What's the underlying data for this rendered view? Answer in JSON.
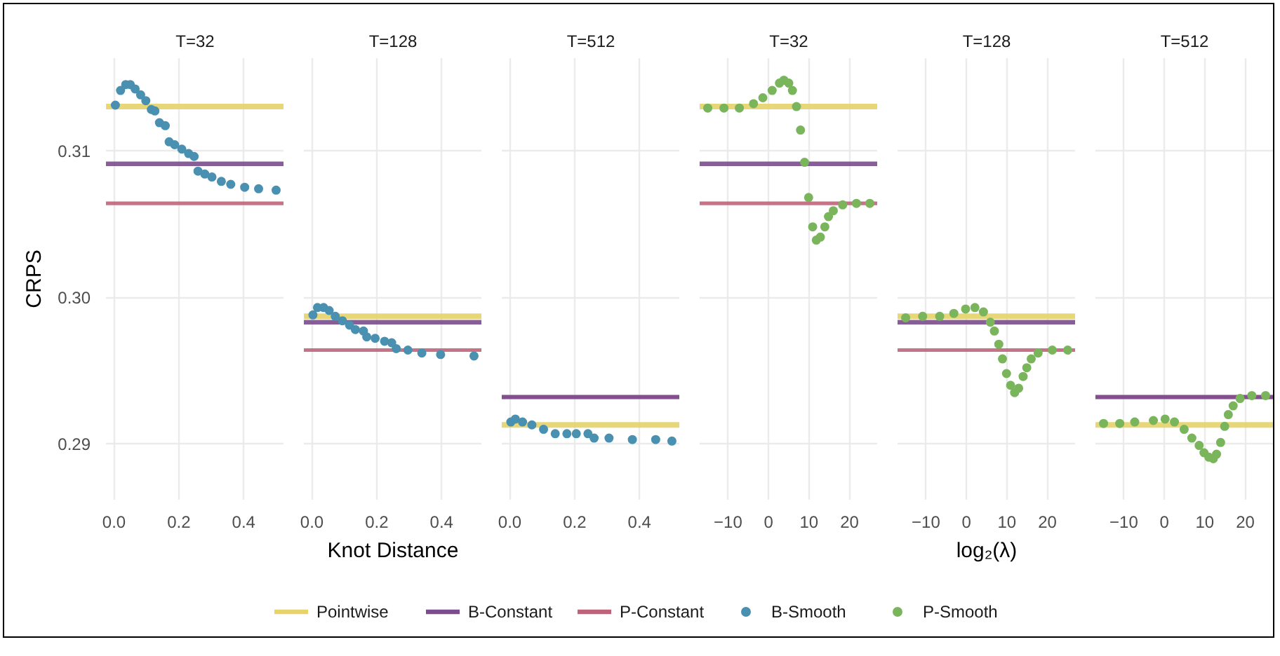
{
  "chart_data": [
    {
      "type": "scatter",
      "title": "T=32",
      "ylabel": "CRPS",
      "xlim": [
        -0.025,
        0.525
      ],
      "xticks": [
        {
          "value": 0,
          "label": "0.0"
        },
        {
          "value": 0.2,
          "label": "0.2"
        },
        {
          "value": 0.4,
          "label": "0.4"
        }
      ],
      "ylim": [
        0.2862,
        0.3163
      ],
      "yticks": [
        {
          "value": 0.29,
          "label": "0.29"
        },
        {
          "value": 0.3,
          "label": "0.30"
        },
        {
          "value": 0.31,
          "label": "0.31"
        }
      ],
      "grid": true,
      "legend": "bottom",
      "series": [
        {
          "name": "Pointwise",
          "type": "line",
          "color": "#e6d36a",
          "x": [
            -0.025,
            0.525
          ],
          "values": [
            0.313,
            0.313
          ]
        },
        {
          "name": "B-Constant",
          "type": "line",
          "color": "#7b4d8e",
          "x": [
            -0.025,
            0.525
          ],
          "values": [
            0.3091,
            0.3091
          ]
        },
        {
          "name": "P-Constant",
          "type": "line",
          "color": "#c0637a",
          "x": [
            -0.025,
            0.525
          ],
          "values": [
            0.3064,
            0.3064
          ]
        },
        {
          "name": "B-Smooth",
          "marker": "circle",
          "color": "#4a90b0",
          "x": [
            0.004,
            0.02,
            0.036,
            0.05,
            0.065,
            0.082,
            0.098,
            0.115,
            0.126,
            0.14,
            0.158,
            0.17,
            0.187,
            0.209,
            0.23,
            0.247,
            0.259,
            0.28,
            0.302,
            0.331,
            0.36,
            0.403,
            0.446,
            0.5
          ],
          "values": [
            0.3131,
            0.3141,
            0.3145,
            0.3145,
            0.3142,
            0.3138,
            0.3134,
            0.3128,
            0.3127,
            0.3119,
            0.3117,
            0.3106,
            0.3104,
            0.3101,
            0.3098,
            0.3096,
            0.3086,
            0.3084,
            0.3082,
            0.3079,
            0.3077,
            0.3075,
            0.3074,
            0.3073
          ]
        }
      ]
    },
    {
      "type": "scatter",
      "title": "T=128",
      "xlabel": "Knot Distance",
      "xlim": [
        -0.025,
        0.525
      ],
      "xticks": [
        {
          "value": 0,
          "label": "0.0"
        },
        {
          "value": 0.2,
          "label": "0.2"
        },
        {
          "value": 0.4,
          "label": "0.4"
        }
      ],
      "ylim": [
        0.2862,
        0.3163
      ],
      "yticks": [
        0.29,
        0.3,
        0.31
      ],
      "tick_labels": "x",
      "grid": true,
      "series": [
        {
          "type": "line",
          "color": "#e6d36a",
          "x": [
            -0.025,
            0.525
          ],
          "values": [
            0.2987,
            0.2987
          ]
        },
        {
          "type": "line",
          "color": "#7b4d8e",
          "x": [
            -0.025,
            0.525
          ],
          "values": [
            0.2983,
            0.2983
          ]
        },
        {
          "type": "line",
          "color": "#c0637a",
          "x": [
            -0.025,
            0.525
          ],
          "values": [
            0.2964,
            0.2964
          ]
        },
        {
          "marker": "circle",
          "color": "#4a90b0",
          "x": [
            0.003,
            0.017,
            0.036,
            0.053,
            0.072,
            0.094,
            0.116,
            0.134,
            0.159,
            0.169,
            0.195,
            0.224,
            0.246,
            0.26,
            0.296,
            0.339,
            0.397,
            0.5
          ],
          "values": [
            0.2988,
            0.2993,
            0.2993,
            0.2991,
            0.2987,
            0.2984,
            0.2981,
            0.2978,
            0.2977,
            0.2973,
            0.2972,
            0.297,
            0.2969,
            0.2965,
            0.2964,
            0.2962,
            0.2961,
            0.296
          ]
        }
      ]
    },
    {
      "type": "scatter",
      "title": "T=512",
      "xlim": [
        -0.025,
        0.525
      ],
      "xticks": [
        {
          "value": 0,
          "label": "0.0"
        },
        {
          "value": 0.2,
          "label": "0.2"
        },
        {
          "value": 0.4,
          "label": "0.4"
        }
      ],
      "ylim": [
        0.2862,
        0.3163
      ],
      "yticks": [
        0.29,
        0.3,
        0.31
      ],
      "tick_labels": "x",
      "grid": true,
      "series": [
        {
          "type": "line",
          "color": "#e6d36a",
          "x": [
            -0.025,
            0.525
          ],
          "values": [
            0.2913,
            0.2913
          ]
        },
        {
          "type": "line",
          "color": "#c0637a",
          "x": [
            -0.025,
            0.525
          ],
          "values": [
            0.2932,
            0.2932
          ]
        },
        {
          "type": "line",
          "color": "#7b4d8e",
          "x": [
            -0.025,
            0.525
          ],
          "values": [
            0.2932,
            0.2932
          ]
        },
        {
          "marker": "circle",
          "color": "#4a90b0",
          "x": [
            0.003,
            0.017,
            0.039,
            0.068,
            0.104,
            0.14,
            0.176,
            0.205,
            0.241,
            0.26,
            0.306,
            0.378,
            0.45,
            0.5
          ],
          "values": [
            0.2915,
            0.2917,
            0.2915,
            0.2913,
            0.291,
            0.2907,
            0.2907,
            0.2907,
            0.2907,
            0.2904,
            0.2904,
            0.2903,
            0.2903,
            0.2902
          ]
        }
      ]
    },
    {
      "type": "scatter",
      "title": "T=32",
      "xlim": [
        -17,
        27
      ],
      "xticks": [
        -10,
        0,
        10,
        20
      ],
      "ylim": [
        0.2862,
        0.3163
      ],
      "yticks": [
        0.29,
        0.3,
        0.31
      ],
      "tick_labels": "x",
      "grid": true,
      "legend": "bottom",
      "series": [
        {
          "type": "line",
          "color": "#e6d36a",
          "x": [
            -17,
            27
          ],
          "values": [
            0.313,
            0.313
          ]
        },
        {
          "type": "line",
          "color": "#7b4d8e",
          "x": [
            -17,
            27
          ],
          "values": [
            0.3091,
            0.3091
          ]
        },
        {
          "type": "line",
          "color": "#c0637a",
          "x": [
            -17,
            27
          ],
          "values": [
            0.3064,
            0.3064
          ]
        },
        {
          "name": "P-Smooth",
          "marker": "circle",
          "color": "#7ab55c",
          "x": [
            -15,
            -11,
            -7.2,
            -3.7,
            -1.4,
            0.9,
            2.7,
            3.8,
            5.0,
            5.9,
            6.9,
            7.9,
            8.9,
            9.9,
            10.9,
            11.8,
            12.8,
            13.9,
            14.8,
            16,
            18.3,
            21.7,
            25
          ],
          "values": [
            0.3129,
            0.3129,
            0.3129,
            0.3132,
            0.3136,
            0.3141,
            0.3146,
            0.3148,
            0.3146,
            0.3141,
            0.313,
            0.3114,
            0.3092,
            0.3068,
            0.3048,
            0.3039,
            0.3041,
            0.3048,
            0.3055,
            0.3059,
            0.3063,
            0.3064,
            0.3064
          ]
        }
      ]
    },
    {
      "type": "scatter",
      "title": "T=128",
      "xlabel": "log₂(λ)",
      "xlim": [
        -17,
        27
      ],
      "xticks": [
        -10,
        0,
        10,
        20
      ],
      "ylim": [
        0.2862,
        0.3163
      ],
      "yticks": [
        0.29,
        0.3,
        0.31
      ],
      "tick_labels": "x",
      "grid": true,
      "series": [
        {
          "type": "line",
          "color": "#e6d36a",
          "x": [
            -17,
            27
          ],
          "values": [
            0.2987,
            0.2987
          ]
        },
        {
          "type": "line",
          "color": "#7b4d8e",
          "x": [
            -17,
            27
          ],
          "values": [
            0.2983,
            0.2983
          ]
        },
        {
          "type": "line",
          "color": "#c0637a",
          "x": [
            -17,
            27
          ],
          "values": [
            0.2964,
            0.2964
          ]
        },
        {
          "marker": "circle",
          "color": "#7ab55c",
          "x": [
            -15,
            -10.8,
            -6.6,
            -3.1,
            -0.2,
            2.1,
            4.2,
            5.9,
            6.9,
            8,
            8.9,
            9.9,
            10.9,
            11.9,
            12.9,
            14,
            14.9,
            16,
            17.7,
            21.2,
            25
          ],
          "values": [
            0.2986,
            0.2987,
            0.2987,
            0.2989,
            0.2992,
            0.2993,
            0.299,
            0.2983,
            0.2977,
            0.2968,
            0.2958,
            0.2948,
            0.294,
            0.2935,
            0.2938,
            0.2946,
            0.2952,
            0.2958,
            0.2962,
            0.2964,
            0.2964
          ]
        }
      ]
    },
    {
      "type": "scatter",
      "title": "T=512",
      "xlim": [
        -17,
        27
      ],
      "xticks": [
        -10,
        0,
        10,
        20
      ],
      "ylim": [
        0.2862,
        0.3163
      ],
      "yticks": [
        0.29,
        0.3,
        0.31
      ],
      "tick_labels": "x",
      "grid": true,
      "series": [
        {
          "type": "line",
          "color": "#e6d36a",
          "x": [
            -17,
            27
          ],
          "values": [
            0.2913,
            0.2913
          ]
        },
        {
          "type": "line",
          "color": "#c0637a",
          "x": [
            -17,
            27
          ],
          "values": [
            0.2932,
            0.2932
          ]
        },
        {
          "type": "line",
          "color": "#7b4d8e",
          "x": [
            -17,
            27
          ],
          "values": [
            0.2932,
            0.2932
          ]
        },
        {
          "marker": "circle",
          "color": "#7ab55c",
          "x": [
            -15,
            -11,
            -7.3,
            -2.7,
            0.2,
            2.5,
            4.9,
            6.8,
            8.6,
            9.8,
            11,
            12.1,
            12.9,
            13.9,
            14.9,
            15.8,
            17,
            18.7,
            21.6,
            25
          ],
          "values": [
            0.2914,
            0.2914,
            0.2915,
            0.2916,
            0.2917,
            0.2915,
            0.291,
            0.2904,
            0.2899,
            0.2894,
            0.2891,
            0.289,
            0.2893,
            0.2901,
            0.2912,
            0.292,
            0.2926,
            0.2931,
            0.2933,
            0.2933
          ]
        }
      ]
    }
  ]
}
